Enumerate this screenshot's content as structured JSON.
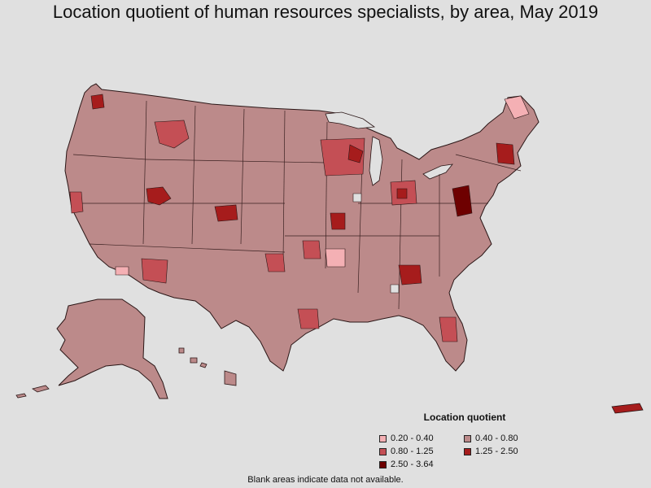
{
  "title": "Location quotient of human resources specialists, by area, May 2019",
  "legend": {
    "title": "Location quotient",
    "items": [
      {
        "label": "0.20 - 0.40",
        "color": "#f4b0b4"
      },
      {
        "label": "0.40 - 0.80",
        "color": "#bc8a8a"
      },
      {
        "label": "0.80 - 1.25",
        "color": "#c44f55"
      },
      {
        "label": "1.25 - 2.50",
        "color": "#a61c1c"
      },
      {
        "label": "2.50 - 3.64",
        "color": "#6e0000"
      }
    ]
  },
  "footnote": "Blank areas indicate data not available.",
  "map": {
    "base_color": "#bc8a8a",
    "border_color": "#3a2020"
  }
}
